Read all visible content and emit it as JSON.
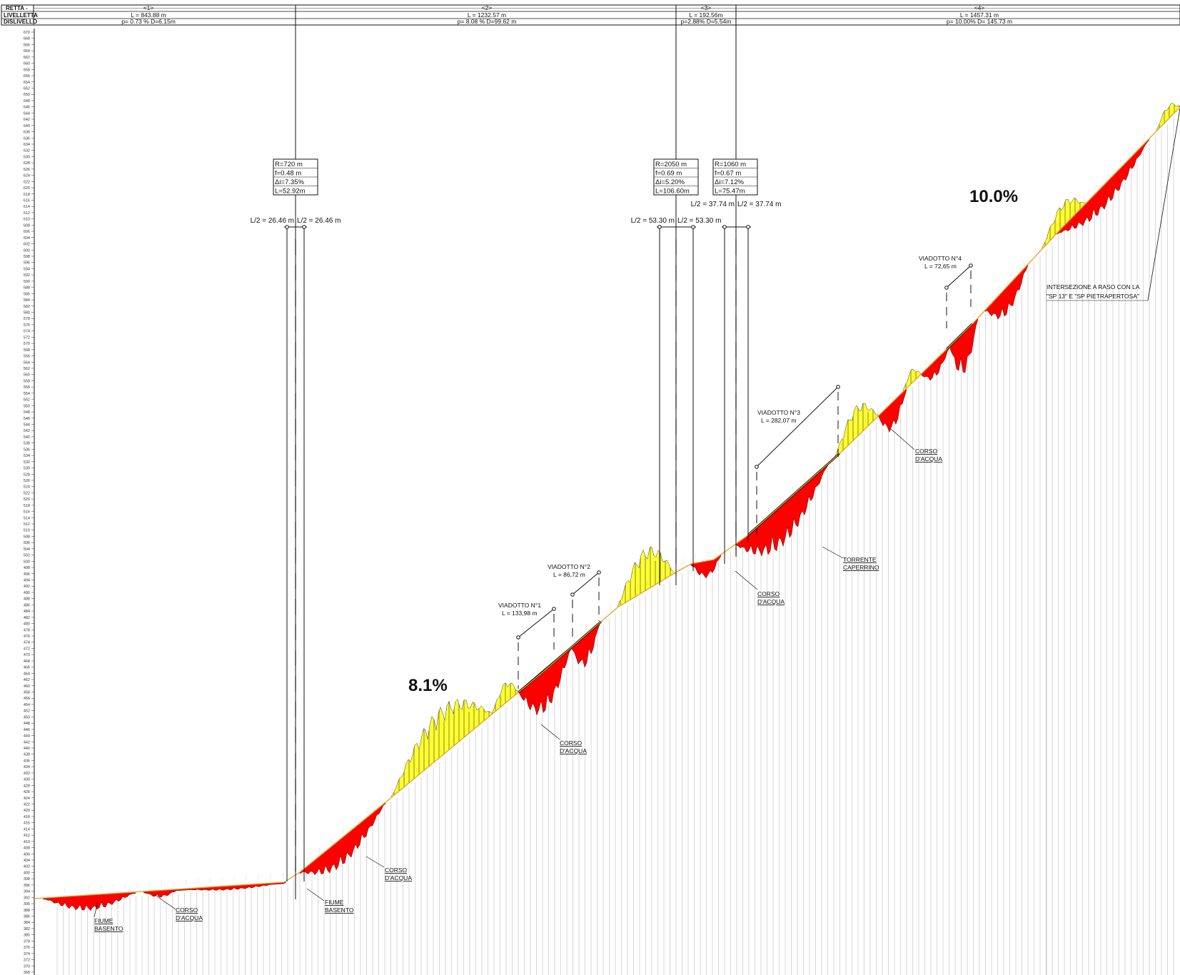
{
  "header": {
    "row_labels": [
      "RETTA -",
      "LIVELLETTA",
      "DISLIVELLO"
    ],
    "segments": [
      {
        "id": "<1>",
        "length": "L = 843.88 m",
        "slope": "p= 0.73 % D=6.15m"
      },
      {
        "id": "<2>",
        "length": "L = 1232.57 m",
        "slope": "p= 8.08 % D=99.62 m"
      },
      {
        "id": "<3>",
        "length": "L = 192.56m",
        "slope": "p=2.88% D=5.54m"
      },
      {
        "id": "<4>",
        "length": "L = 1457.31 m",
        "slope": "p= 10.00% D= 145.73 m"
      }
    ]
  },
  "elevation_axis": {
    "min": 368,
    "max": 670,
    "step": 2
  },
  "vertical_curves": [
    {
      "box": [
        "R=720 m",
        "f=0.48 m",
        "Δi=7.35%",
        "L=52.92m"
      ],
      "half_left": "L/2 = 26.46 m",
      "half_right": "L/2 = 26.46 m"
    },
    {
      "box": [
        "R=2050 m",
        "f=0.69 m",
        "Δi=5.20%",
        "L=106.60m"
      ],
      "half_left": "L/2 = 53.30 m",
      "half_right": "L/2 = 53.30 m"
    },
    {
      "box": [
        "R=1060 m",
        "f=0.67 m",
        "Δi=7.12%",
        "L=75.47m"
      ],
      "half_left": "L/2 = 37.74 m",
      "half_right": "L/2 = 37.74 m"
    }
  ],
  "viaducts": [
    {
      "name": "VIADOTTO N°1",
      "length": "L = 133,98 m"
    },
    {
      "name": "VIADOTTO N°2",
      "length": "L = 86,72 m"
    },
    {
      "name": "VIADOTTO N°3",
      "length": "L = 282,07 m"
    },
    {
      "name": "VIADOTTO N°4",
      "length": "L = 72,65 m"
    }
  ],
  "crossings": [
    {
      "lines": [
        "FIUME",
        "BASENTO"
      ]
    },
    {
      "lines": [
        "CORSO",
        "D'ACQUA"
      ]
    },
    {
      "lines": [
        "FIUME",
        "BASENTO"
      ]
    },
    {
      "lines": [
        "CORSO",
        "D'ACQUA"
      ]
    },
    {
      "lines": [
        "CORSO",
        "D'ACQUA"
      ]
    },
    {
      "lines": [
        "CORSO",
        "D'ACQUA"
      ]
    },
    {
      "lines": [
        "TORRENTE",
        "CAPERRINO"
      ]
    },
    {
      "lines": [
        "CORSO",
        "D'ACQUA"
      ]
    }
  ],
  "intersection_note": [
    "INTERSEZIONE A RASO CON LA",
    "\"SP 13\" E \"SP PIETRAPERTOSA\""
  ],
  "slope_labels": [
    "8.1%",
    "10.0%"
  ],
  "colors": {
    "cut": "#ff0000",
    "fill": "#ffff33",
    "grade_line": "#e8a020",
    "grid": "#b0b0b0",
    "ink": "#111111"
  }
}
